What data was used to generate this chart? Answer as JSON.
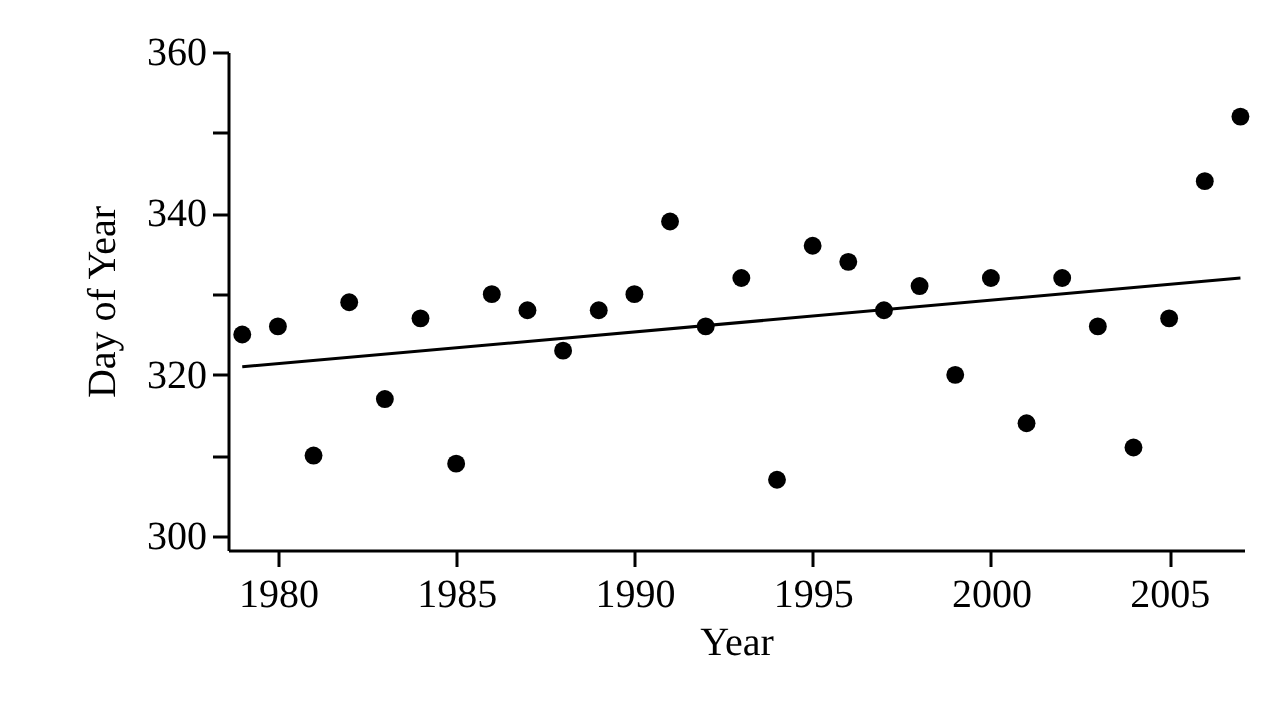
{
  "chart_data": {
    "type": "scatter",
    "xlabel": "Year",
    "ylabel": "Day of Year",
    "x": [
      1979,
      1980,
      1981,
      1982,
      1983,
      1984,
      1985,
      1986,
      1987,
      1988,
      1989,
      1990,
      1991,
      1992,
      1993,
      1994,
      1995,
      1996,
      1997,
      1998,
      1999,
      2000,
      2001,
      2002,
      2003,
      2004,
      2005,
      2006,
      2007
    ],
    "series": [
      {
        "color": "#000000",
        "marker": "circle",
        "values": [
          325,
          326,
          310,
          329,
          317,
          327,
          309,
          330,
          328,
          323,
          328,
          330,
          339,
          326,
          332,
          307,
          336,
          334,
          328,
          331,
          320,
          332,
          314,
          332,
          326,
          311,
          327,
          344,
          352
        ]
      },
      {
        "type": "line",
        "color": "#000000",
        "x": [
          1979,
          2007
        ],
        "values": [
          321,
          332
        ]
      }
    ],
    "xlim": [
      1978.6,
      2007.1
    ],
    "xticks": [
      1980,
      1985,
      1990,
      1995,
      2000,
      2005
    ],
    "ylim": [
      298.3,
      360
    ],
    "yticks": [
      300,
      {
        "value": 310,
        "label": null
      },
      320,
      {
        "value": 330,
        "label": null
      },
      340,
      {
        "value": 350,
        "label": null
      },
      360
    ],
    "grid": false
  }
}
